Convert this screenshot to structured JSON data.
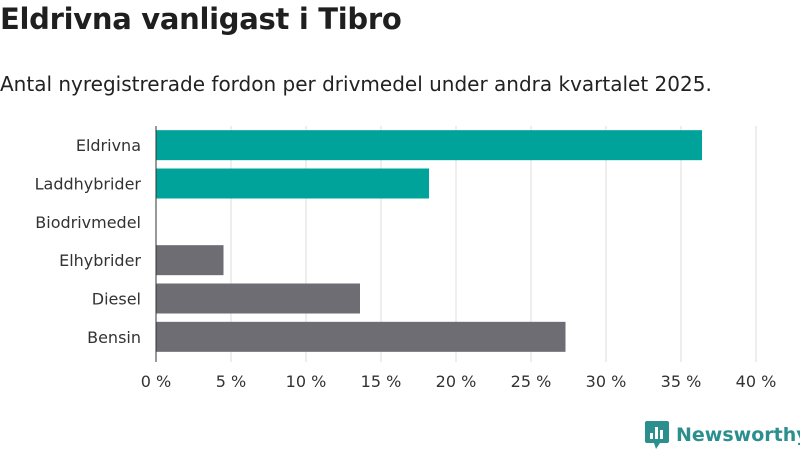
{
  "title": "Eldrivna vanligast i Tibro",
  "subtitle": "Antal nyregistrerade fordon per drivmedel under andra kvartalet 2025.",
  "brand": {
    "name": "Newsworthy",
    "icon": "newsworthy-logo-icon"
  },
  "colors": {
    "electric": "#00a39a",
    "other": "#6e6d73",
    "grid": "#dcdcdc",
    "brand": "#2b8f8d"
  },
  "chart_data": {
    "type": "bar",
    "orientation": "horizontal",
    "categories": [
      "Eldrivna",
      "Laddhybrider",
      "Biodrivmedel",
      "Elhybrider",
      "Diesel",
      "Bensin"
    ],
    "values": [
      36.4,
      18.2,
      0,
      4.5,
      13.6,
      27.3
    ],
    "bar_colors": [
      "#00a39a",
      "#00a39a",
      "#00a39a",
      "#6e6d73",
      "#6e6d73",
      "#6e6d73"
    ],
    "xlim": [
      0,
      40
    ],
    "xticks": [
      0,
      5,
      10,
      15,
      20,
      25,
      30,
      35,
      40
    ],
    "xtick_labels": [
      "0 %",
      "5 %",
      "10 %",
      "15 %",
      "20 %",
      "25 %",
      "30 %",
      "35 %",
      "40 %"
    ],
    "grid": true,
    "legend": false
  }
}
